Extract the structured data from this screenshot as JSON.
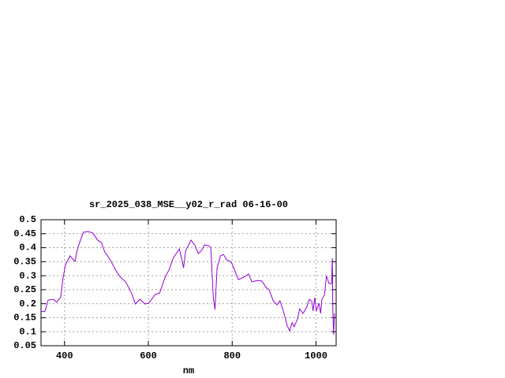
{
  "chart_data": {
    "type": "line",
    "title": "sr_2025_038_MSE__y02_r_rad 06-16-00",
    "x_label": "nm",
    "xlim": [
      344,
      1048
    ],
    "ylim": [
      0.05,
      0.5
    ],
    "xticks": [
      400,
      600,
      800,
      1000
    ],
    "yticks": [
      0.05,
      0.1,
      0.15,
      0.2,
      0.25,
      0.3,
      0.35,
      0.4,
      0.45,
      0.5
    ],
    "grid": true,
    "series": [
      {
        "color": "#9400d3",
        "x": [
          344,
          353,
          361,
          374,
          381,
          391,
          396,
          402,
          413,
          425,
          430,
          438,
          445,
          456,
          468,
          479,
          488,
          496,
          509,
          522,
          533,
          546,
          560,
          569,
          580,
          592,
          601,
          616,
          627,
          640,
          650,
          659,
          674,
          680,
          684,
          689,
          702,
          712,
          719,
          727,
          734,
          744,
          749,
          755,
          759,
          764,
          772,
          779,
          787,
          798,
          815,
          828,
          839,
          847,
          860,
          871,
          881,
          888,
          898,
          907,
          914,
          922,
          931,
          937,
          943,
          948,
          956,
          961,
          969,
          978,
          984,
          990,
          993,
          997,
          1001,
          1007,
          1011,
          1014,
          1020,
          1025,
          1031,
          1037,
          1039,
          1040,
          1042,
          1044
        ],
        "values": [
          0.172,
          0.172,
          0.213,
          0.216,
          0.205,
          0.224,
          0.286,
          0.337,
          0.371,
          0.351,
          0.39,
          0.427,
          0.455,
          0.458,
          0.452,
          0.427,
          0.418,
          0.385,
          0.357,
          0.32,
          0.295,
          0.278,
          0.238,
          0.199,
          0.216,
          0.199,
          0.202,
          0.233,
          0.238,
          0.295,
          0.323,
          0.362,
          0.396,
          0.357,
          0.328,
          0.39,
          0.427,
          0.407,
          0.379,
          0.39,
          0.41,
          0.407,
          0.399,
          0.222,
          0.179,
          0.328,
          0.371,
          0.376,
          0.357,
          0.348,
          0.286,
          0.295,
          0.306,
          0.278,
          0.283,
          0.281,
          0.258,
          0.25,
          0.21,
          0.196,
          0.21,
          0.174,
          0.123,
          0.103,
          0.132,
          0.118,
          0.146,
          0.182,
          0.165,
          0.188,
          0.216,
          0.208,
          0.174,
          0.222,
          0.174,
          0.202,
          0.165,
          0.216,
          0.23,
          0.3,
          0.272,
          0.272,
          0.362,
          0.188,
          0.089,
          0.165
        ]
      }
    ]
  }
}
